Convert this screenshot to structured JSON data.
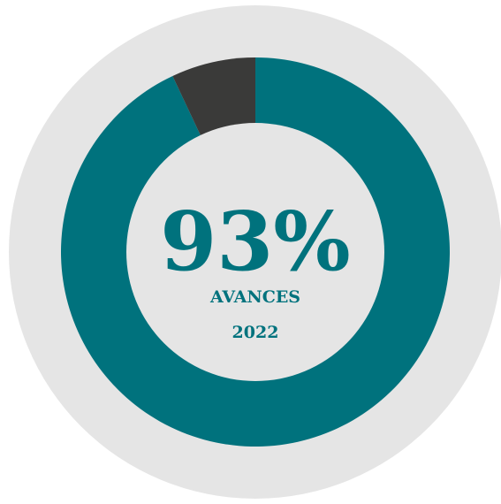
{
  "chart_data": {
    "type": "pie",
    "variant": "donut",
    "slices": [
      {
        "label": "AVANCES",
        "value": 93,
        "color": "#00727D"
      },
      {
        "label": "",
        "value": 7,
        "color": "#3A3A39"
      }
    ],
    "center": {
      "percent_text": "93%",
      "label": "AVANCES",
      "year": "2022"
    },
    "colors": {
      "background_disc": "#E5E5E5",
      "primary": "#00727D",
      "remainder": "#3A3A39",
      "inner_disc": "#E5E5E5"
    }
  }
}
